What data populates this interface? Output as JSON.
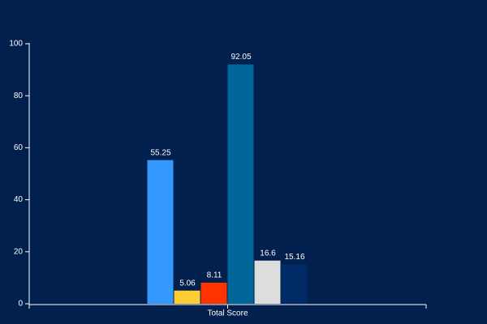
{
  "chart_data": {
    "type": "bar",
    "categories": [
      "Total Score"
    ],
    "series": [
      {
        "color": "#3399ff",
        "values": [
          55.25
        ]
      },
      {
        "color": "#ffcc33",
        "values": [
          5.06
        ]
      },
      {
        "color": "#ff3300",
        "values": [
          8.11
        ]
      },
      {
        "color": "#006699",
        "values": [
          92.05
        ]
      },
      {
        "color": "#dddddd",
        "values": [
          16.6
        ]
      },
      {
        "color": "#002a66",
        "values": [
          15.16
        ]
      }
    ],
    "ylim": [
      0,
      100
    ],
    "yticks": [
      0,
      20,
      40,
      60,
      80,
      100
    ],
    "value_labels_shown": true
  }
}
